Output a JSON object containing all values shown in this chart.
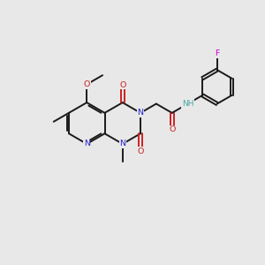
{
  "background_color": "#e8e8e8",
  "bond_color": "#1a1a1a",
  "atom_colors": {
    "N": "#2222cc",
    "O": "#cc2222",
    "F": "#cc00cc",
    "H": "#4da6a6",
    "C": "#1a1a1a"
  },
  "figsize": [
    3.0,
    3.0
  ],
  "dpi": 100,
  "lw": 1.4,
  "fs": 6.8
}
